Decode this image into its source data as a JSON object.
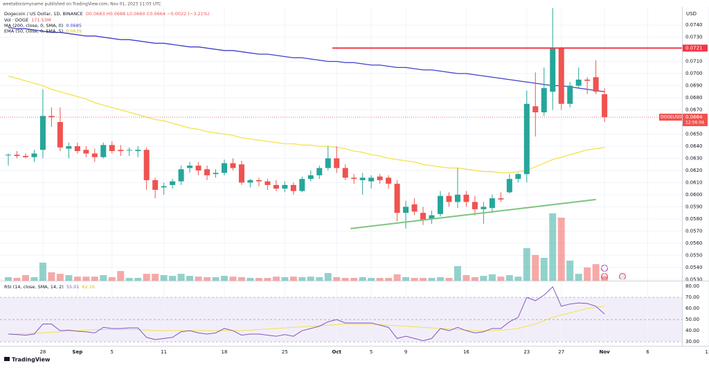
{
  "header": {
    "publisher": "weetabixismyname published on TradingView.com, Nov 01, 2023 11:03 UTC"
  },
  "footer": {
    "brand": "TradingView"
  },
  "chart_data": [
    {
      "type": "candlestick",
      "legend": {
        "symbol": "Dogecoin / US Dollar, 1D, BINANCE",
        "ohlc": "O0.0683 H0.0688 L0.0660 C0.0664 −0.0022 (−3.21%)"
      },
      "currency": "USD",
      "categories": [
        null,
        null,
        null,
        null,
        "28",
        null,
        null,
        null,
        "Sep",
        null,
        null,
        null,
        "5",
        null,
        null,
        null,
        null,
        null,
        "11",
        null,
        null,
        null,
        null,
        null,
        null,
        "18",
        null,
        null,
        null,
        null,
        null,
        null,
        "25",
        null,
        null,
        null,
        null,
        null,
        "Oct",
        null,
        null,
        null,
        "5",
        null,
        null,
        null,
        "9",
        null,
        null,
        null,
        null,
        null,
        null,
        "16",
        null,
        null,
        null,
        null,
        null,
        null,
        "23",
        null,
        null,
        null,
        "27",
        null,
        null,
        null,
        null,
        "Nov",
        null,
        null,
        null,
        null,
        "6",
        null,
        null,
        null,
        null,
        null,
        null,
        "13"
      ],
      "open": [
        0.0633,
        0.0633,
        0.0632,
        0.0631,
        0.0637,
        0.0665,
        0.066,
        0.0638,
        0.064,
        0.0637,
        0.0634,
        0.0631,
        0.0641,
        0.0637,
        0.0637,
        0.0636,
        0.0637,
        0.0612,
        0.0606,
        0.0608,
        0.0611,
        0.0622,
        0.0624,
        0.0621,
        0.0617,
        0.0618,
        0.0626,
        0.0625,
        0.061,
        0.0612,
        0.0611,
        0.0608,
        0.0605,
        0.0608,
        0.0603,
        0.0613,
        0.0616,
        0.0622,
        0.063,
        0.0622,
        0.0614,
        0.0612,
        0.0611,
        0.0615,
        0.0614,
        0.0609,
        0.0585,
        0.0592,
        0.0585,
        0.058,
        0.0584,
        0.0599,
        0.0594,
        0.06,
        0.0594,
        0.0588,
        0.0589,
        0.0597,
        0.0602,
        0.0613,
        0.0617,
        0.0673,
        0.0668,
        0.0685,
        0.0721,
        0.0675,
        0.069,
        0.0695,
        0.0697,
        0.0683,
        null,
        null,
        null,
        null,
        null,
        null,
        null,
        null,
        null,
        null,
        null,
        null
      ],
      "high": [
        0.0634,
        0.0636,
        0.0634,
        0.0637,
        0.0687,
        0.0672,
        0.0672,
        0.0643,
        0.0643,
        0.064,
        0.0638,
        0.0643,
        0.0644,
        0.0641,
        0.0639,
        0.064,
        0.0639,
        0.0614,
        0.061,
        0.0613,
        0.0624,
        0.0627,
        0.0627,
        0.0624,
        0.0621,
        0.0629,
        0.063,
        0.0628,
        0.0613,
        0.0614,
        0.0613,
        0.0612,
        0.0611,
        0.061,
        0.0615,
        0.062,
        0.0624,
        0.064,
        0.064,
        0.0625,
        0.0617,
        0.0618,
        0.0616,
        0.0617,
        0.0616,
        0.0612,
        0.0595,
        0.0597,
        0.059,
        0.0587,
        0.0603,
        0.0602,
        0.0622,
        0.0603,
        0.0599,
        0.0594,
        0.06,
        0.0602,
        0.0617,
        0.0618,
        0.0686,
        0.0701,
        0.0705,
        0.0754,
        0.0722,
        0.0693,
        0.0705,
        0.0697,
        0.0711,
        0.0688,
        null,
        null,
        null,
        null,
        null,
        null,
        null,
        null,
        null,
        null,
        null,
        null
      ],
      "low": [
        0.0624,
        0.063,
        0.063,
        0.0627,
        0.063,
        0.0656,
        0.0636,
        0.063,
        0.0634,
        0.0631,
        0.0627,
        0.063,
        0.0634,
        0.0632,
        0.0632,
        0.0631,
        0.0604,
        0.0597,
        0.06,
        0.0605,
        0.0608,
        0.0618,
        0.0616,
        0.0612,
        0.0614,
        0.0616,
        0.062,
        0.0608,
        0.0606,
        0.0607,
        0.0604,
        0.0603,
        0.0602,
        0.06,
        0.0602,
        0.0611,
        0.0613,
        0.062,
        0.0618,
        0.0612,
        0.0609,
        0.06,
        0.0605,
        0.0609,
        0.0605,
        0.0578,
        0.0572,
        0.0583,
        0.0575,
        0.0576,
        0.0582,
        0.059,
        0.0589,
        0.059,
        0.0583,
        0.0576,
        0.0585,
        0.0594,
        0.0601,
        0.061,
        0.061,
        0.0648,
        0.0665,
        0.067,
        0.067,
        0.0672,
        0.0688,
        0.0683,
        0.0683,
        0.066,
        null,
        null,
        null,
        null,
        null,
        null,
        null,
        null,
        null,
        null,
        null,
        null
      ],
      "close": [
        0.0633,
        0.0632,
        0.0631,
        0.0634,
        0.0665,
        0.0664,
        0.0639,
        0.064,
        0.0636,
        0.0634,
        0.0631,
        0.0641,
        0.0636,
        0.0636,
        0.0637,
        0.0637,
        0.0612,
        0.0604,
        0.0607,
        0.0611,
        0.0621,
        0.0624,
        0.062,
        0.0616,
        0.0618,
        0.0626,
        0.0622,
        0.061,
        0.0612,
        0.0611,
        0.0608,
        0.0605,
        0.0608,
        0.0603,
        0.0613,
        0.0616,
        0.0622,
        0.063,
        0.0622,
        0.0614,
        0.0613,
        0.0614,
        0.0614,
        0.0612,
        0.0609,
        0.0585,
        0.059,
        0.0586,
        0.0579,
        0.0583,
        0.0599,
        0.0594,
        0.06,
        0.0594,
        0.0588,
        0.059,
        0.0597,
        0.0596,
        0.0613,
        0.0617,
        0.0675,
        0.0668,
        0.0688,
        0.0721,
        0.0675,
        0.069,
        0.0695,
        0.0694,
        0.0685,
        0.0664,
        null,
        null,
        null,
        null,
        null,
        null,
        null,
        null,
        null,
        null,
        null,
        null
      ],
      "up_color": "#26a69a",
      "down_color": "#ef5350",
      "ylim": [
        0.0529,
        0.0755
      ],
      "yticks": [
        {
          "value": 0.074,
          "label": "0.0740"
        },
        {
          "value": 0.073,
          "label": "0.0730"
        },
        {
          "value": 0.071,
          "label": "0.0710"
        },
        {
          "value": 0.07,
          "label": "0.0700"
        },
        {
          "value": 0.069,
          "label": "0.0690"
        },
        {
          "value": 0.068,
          "label": "0.0680"
        },
        {
          "value": 0.067,
          "label": "0.0670"
        },
        {
          "value": 0.065,
          "label": "0.0650"
        },
        {
          "value": 0.064,
          "label": "0.0640"
        },
        {
          "value": 0.063,
          "label": "0.0630"
        },
        {
          "value": 0.062,
          "label": "0.0620"
        },
        {
          "value": 0.061,
          "label": "0.0610"
        },
        {
          "value": 0.06,
          "label": "0.0600"
        },
        {
          "value": 0.059,
          "label": "0.0590"
        },
        {
          "value": 0.058,
          "label": "0.0580"
        },
        {
          "value": 0.057,
          "label": "0.0570"
        },
        {
          "value": 0.056,
          "label": "0.0560"
        },
        {
          "value": 0.055,
          "label": "0.0550"
        },
        {
          "value": 0.054,
          "label": "0.0540"
        },
        {
          "value": 0.053,
          "label": "0.0530"
        }
      ],
      "grid": true,
      "series": [
        {
          "name": "MA (200, close, 0, SMA, 0)",
          "color": "#3f3fc8",
          "values": [
            0.0738,
            0.0737,
            0.0737,
            0.0736,
            0.0735,
            0.0734,
            0.0734,
            0.0733,
            0.0732,
            0.0731,
            0.0731,
            0.073,
            0.0729,
            0.0728,
            0.0728,
            0.0727,
            0.0726,
            0.0725,
            0.0725,
            0.0724,
            0.0723,
            0.0722,
            0.0722,
            0.0721,
            0.072,
            0.0719,
            0.0719,
            0.0718,
            0.0717,
            0.0716,
            0.0716,
            0.0715,
            0.0714,
            0.0713,
            0.0713,
            0.0712,
            0.0711,
            0.071,
            0.071,
            0.0709,
            0.0709,
            0.0708,
            0.0707,
            0.0707,
            0.0706,
            0.0705,
            0.0705,
            0.0704,
            0.0703,
            0.0703,
            0.0702,
            0.0701,
            0.07,
            0.07,
            0.0699,
            0.0698,
            0.0697,
            0.0696,
            0.0695,
            0.0694,
            0.0693,
            0.0692,
            0.0691,
            0.069,
            0.069,
            0.0689,
            0.0688,
            0.0687,
            0.0686,
            0.0685,
            null,
            null,
            null,
            null,
            null,
            null,
            null,
            null,
            null,
            null,
            null,
            null
          ]
        },
        {
          "name": "EMA (50, close, 0, SMA, 5)",
          "color": "#f2e24a",
          "values": [
            0.0698,
            0.0696,
            0.0694,
            0.0692,
            0.069,
            0.0687,
            0.0685,
            0.0683,
            0.0681,
            0.0679,
            0.0676,
            0.0674,
            0.0672,
            0.067,
            0.0668,
            0.0666,
            0.0664,
            0.0662,
            0.0661,
            0.0659,
            0.0657,
            0.0655,
            0.0654,
            0.0652,
            0.0651,
            0.065,
            0.0649,
            0.0647,
            0.0646,
            0.0645,
            0.0644,
            0.0643,
            0.0642,
            0.0642,
            0.0641,
            0.0641,
            0.064,
            0.064,
            0.0639,
            0.0638,
            0.0636,
            0.0635,
            0.0633,
            0.0632,
            0.063,
            0.0629,
            0.0628,
            0.0627,
            0.0625,
            0.0624,
            0.0623,
            0.0622,
            0.0622,
            0.0621,
            0.062,
            0.0619,
            0.0619,
            0.0618,
            0.0618,
            0.0619,
            0.062,
            0.0623,
            0.0626,
            0.0629,
            0.0631,
            0.0633,
            0.0635,
            0.0637,
            0.0638,
            0.0639,
            null,
            null,
            null,
            null,
            null,
            null,
            null,
            null,
            null,
            null,
            null,
            null
          ]
        }
      ],
      "volume": {
        "name": "Vol · DOGE",
        "value_label": "171.53M",
        "vlim": [
          0,
          3000
        ],
        "values": [
          140,
          110,
          220,
          140,
          710,
          330,
          270,
          220,
          160,
          160,
          160,
          220,
          140,
          380,
          110,
          110,
          270,
          270,
          220,
          190,
          270,
          190,
          160,
          140,
          140,
          190,
          160,
          140,
          110,
          110,
          110,
          160,
          140,
          160,
          140,
          160,
          140,
          300,
          140,
          110,
          110,
          140,
          110,
          110,
          110,
          250,
          140,
          110,
          110,
          110,
          140,
          110,
          570,
          220,
          140,
          190,
          250,
          160,
          220,
          160,
          1280,
          1010,
          900,
          2650,
          2480,
          790,
          270,
          520,
          650,
          171.53,
          null,
          null,
          null,
          null,
          null,
          null,
          null,
          null,
          null,
          null,
          null,
          null
        ]
      },
      "resistance": {
        "value": 0.0721,
        "color": "#f23645",
        "start": 37.5
      },
      "trendline": {
        "color": "#7cc47f",
        "x": [
          39.6,
          68
        ],
        "y": [
          0.0572,
          0.0596
        ]
      },
      "last_price": {
        "symbol": "DOGEUSD",
        "countdown": "12:56:04"
      }
    },
    {
      "type": "line",
      "title": "RSI (14, close, SMA, 14, 2)",
      "ylim": [
        27,
        84.4
      ],
      "yticks": [
        {
          "value": 80,
          "label": "80.00"
        },
        {
          "value": 70,
          "label": "70.00"
        },
        {
          "value": 60,
          "label": "60.00"
        },
        {
          "value": 50,
          "label": "50.00"
        },
        {
          "value": 40,
          "label": "40.00"
        },
        {
          "value": 30,
          "label": "30.00"
        }
      ],
      "levels": [
        30,
        50,
        70
      ],
      "series": [
        {
          "name": "RSI",
          "color": "#7e57c2",
          "values": [
            37,
            36.5,
            36,
            37,
            46,
            46,
            40,
            40.5,
            39.5,
            39,
            38,
            43,
            42,
            42,
            42.5,
            42.5,
            34,
            32,
            33,
            34,
            39,
            40,
            38,
            37,
            38,
            42,
            40,
            36,
            37,
            37,
            36,
            35,
            36.5,
            35,
            40,
            42,
            44,
            48,
            50,
            47,
            47,
            47,
            47,
            45,
            43,
            33,
            35,
            33,
            31,
            33,
            42,
            40,
            43,
            40,
            38,
            39,
            42,
            42,
            48,
            52,
            70,
            67,
            72,
            79.5,
            62,
            64,
            65,
            64.5,
            62,
            55.01,
            null,
            null,
            null,
            null,
            null,
            null,
            null,
            null,
            null,
            null,
            null,
            null
          ]
        },
        {
          "name": "RSI-based MA",
          "color": "#f2e24a",
          "values": [
            37,
            37,
            37.5,
            37.5,
            38,
            38.5,
            39,
            39.5,
            40,
            40.5,
            41,
            41,
            41,
            41,
            41,
            41,
            40.5,
            40,
            40,
            40,
            40,
            40,
            40,
            40,
            40,
            40,
            40,
            40,
            40.5,
            41,
            41.5,
            42,
            42.5,
            43,
            43.5,
            44,
            44.5,
            45,
            45.5,
            46,
            46,
            46,
            46,
            45.5,
            45,
            44.5,
            44,
            43.5,
            43,
            42.5,
            42,
            41.5,
            41,
            40.5,
            40,
            40,
            40,
            40.5,
            41,
            42,
            44,
            46,
            49,
            52,
            54,
            56,
            58,
            60,
            61,
            62.16,
            null,
            null,
            null,
            null,
            null,
            null,
            null,
            null,
            null,
            null,
            null,
            null
          ]
        }
      ]
    }
  ]
}
